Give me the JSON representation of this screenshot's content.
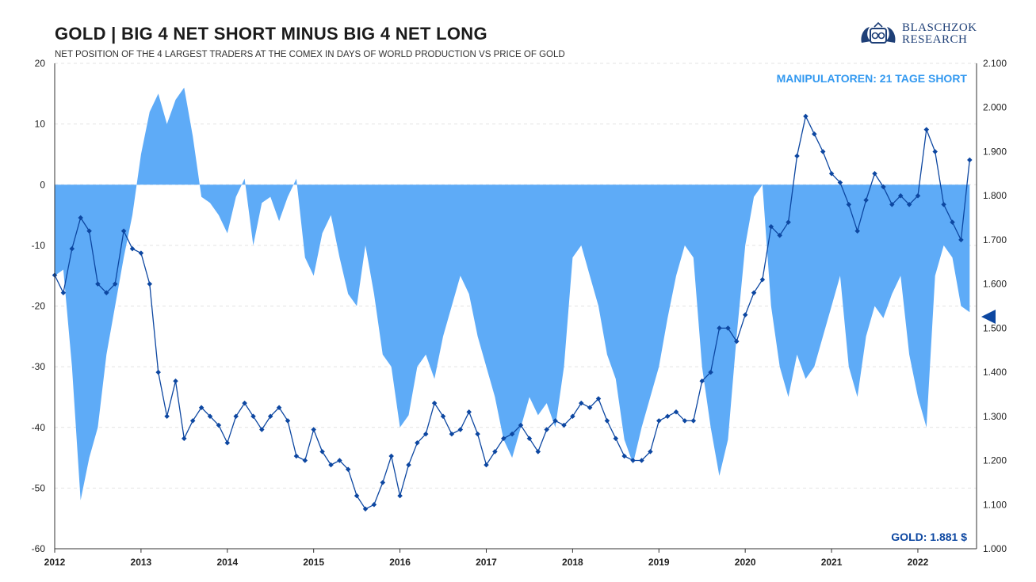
{
  "title": "GOLD | BIG 4 NET SHORT MINUS BIG 4 NET LONG",
  "subtitle": "NET POSITION OF THE 4 LARGEST TRADERS AT THE COMEX IN DAYS OF WORLD PRODUCTION VS PRICE OF GOLD",
  "logo": {
    "line1": "BLASCHZOK",
    "line2": "RESEARCH"
  },
  "annotations": {
    "position_label": "MANIPULATOREN: 21 TAGE SHORT",
    "price_label": "GOLD: 1.881 $"
  },
  "colors": {
    "net_position_fill": "#5eabf7",
    "gold_line": "#0d47a1",
    "position_label": "#3399f0",
    "price_label": "#0d47a1",
    "marker": "#0d47a1"
  },
  "chart_data": {
    "type": "bar+line",
    "x_ticks": [
      "2012",
      "2013",
      "2014",
      "2015",
      "2016",
      "2017",
      "2018",
      "2019",
      "2020",
      "2021",
      "2022"
    ],
    "y_left": {
      "range": [
        -60,
        20
      ],
      "ticks": [
        "20",
        "10",
        "0",
        "-10",
        "-20",
        "-30",
        "-40",
        "-50",
        "-60"
      ]
    },
    "y_right": {
      "range": [
        1000,
        2100
      ],
      "ticks": [
        "2.100",
        "2.000",
        "1.900",
        "1.800",
        "1.700",
        "1.600",
        "1.500",
        "1.400",
        "1.300",
        "1.200",
        "1.100",
        "1.000"
      ]
    },
    "grid": "horizontal dashed",
    "series": [
      {
        "kind": "area",
        "axis": "left",
        "x": [
          2012.0,
          2012.1,
          2012.2,
          2012.3,
          2012.4,
          2012.5,
          2012.6,
          2012.7,
          2012.8,
          2012.9,
          2013.0,
          2013.1,
          2013.2,
          2013.3,
          2013.4,
          2013.5,
          2013.6,
          2013.7,
          2013.8,
          2013.9,
          2014.0,
          2014.1,
          2014.2,
          2014.3,
          2014.4,
          2014.5,
          2014.6,
          2014.7,
          2014.8,
          2014.9,
          2015.0,
          2015.1,
          2015.2,
          2015.3,
          2015.4,
          2015.5,
          2015.6,
          2015.7,
          2015.8,
          2015.9,
          2016.0,
          2016.1,
          2016.2,
          2016.3,
          2016.4,
          2016.5,
          2016.6,
          2016.7,
          2016.8,
          2016.9,
          2017.0,
          2017.1,
          2017.2,
          2017.3,
          2017.4,
          2017.5,
          2017.6,
          2017.7,
          2017.8,
          2017.9,
          2018.0,
          2018.1,
          2018.2,
          2018.3,
          2018.4,
          2018.5,
          2018.6,
          2018.7,
          2018.8,
          2018.9,
          2019.0,
          2019.1,
          2019.2,
          2019.3,
          2019.4,
          2019.5,
          2019.6,
          2019.7,
          2019.8,
          2019.9,
          2020.0,
          2020.1,
          2020.2,
          2020.3,
          2020.4,
          2020.5,
          2020.6,
          2020.7,
          2020.8,
          2020.9,
          2021.0,
          2021.1,
          2021.2,
          2021.3,
          2021.4,
          2021.5,
          2021.6,
          2021.7,
          2021.8,
          2021.9,
          2022.0,
          2022.1,
          2022.2,
          2022.3,
          2022.4,
          2022.5,
          2022.6
        ],
        "values": [
          -15,
          -14,
          -30,
          -52,
          -45,
          -40,
          -28,
          -20,
          -12,
          -5,
          5,
          12,
          15,
          10,
          14,
          16,
          8,
          -2,
          -3,
          -5,
          -8,
          -2,
          1,
          -10,
          -3,
          -2,
          -6,
          -2,
          1,
          -12,
          -15,
          -8,
          -5,
          -12,
          -18,
          -20,
          -10,
          -18,
          -28,
          -30,
          -40,
          -38,
          -30,
          -28,
          -32,
          -25,
          -20,
          -15,
          -18,
          -25,
          -30,
          -35,
          -42,
          -45,
          -40,
          -35,
          -38,
          -36,
          -40,
          -30,
          -12,
          -10,
          -15,
          -20,
          -28,
          -32,
          -42,
          -46,
          -40,
          -35,
          -30,
          -22,
          -15,
          -10,
          -12,
          -30,
          -40,
          -48,
          -42,
          -25,
          -10,
          -2,
          0,
          -20,
          -30,
          -35,
          -28,
          -32,
          -30,
          -25,
          -20,
          -15,
          -30,
          -35,
          -25,
          -20,
          -22,
          -18,
          -15,
          -28,
          -35,
          -40,
          -15,
          -10,
          -12,
          -20,
          -21
        ]
      },
      {
        "kind": "line",
        "axis": "right",
        "x": [
          2012.0,
          2012.1,
          2012.2,
          2012.3,
          2012.4,
          2012.5,
          2012.6,
          2012.7,
          2012.8,
          2012.9,
          2013.0,
          2013.1,
          2013.2,
          2013.3,
          2013.4,
          2013.5,
          2013.6,
          2013.7,
          2013.8,
          2013.9,
          2014.0,
          2014.1,
          2014.2,
          2014.3,
          2014.4,
          2014.5,
          2014.6,
          2014.7,
          2014.8,
          2014.9,
          2015.0,
          2015.1,
          2015.2,
          2015.3,
          2015.4,
          2015.5,
          2015.6,
          2015.7,
          2015.8,
          2015.9,
          2016.0,
          2016.1,
          2016.2,
          2016.3,
          2016.4,
          2016.5,
          2016.6,
          2016.7,
          2016.8,
          2016.9,
          2017.0,
          2017.1,
          2017.2,
          2017.3,
          2017.4,
          2017.5,
          2017.6,
          2017.7,
          2017.8,
          2017.9,
          2018.0,
          2018.1,
          2018.2,
          2018.3,
          2018.4,
          2018.5,
          2018.6,
          2018.7,
          2018.8,
          2018.9,
          2019.0,
          2019.1,
          2019.2,
          2019.3,
          2019.4,
          2019.5,
          2019.6,
          2019.7,
          2019.8,
          2019.9,
          2020.0,
          2020.1,
          2020.2,
          2020.3,
          2020.4,
          2020.5,
          2020.6,
          2020.7,
          2020.8,
          2020.9,
          2021.0,
          2021.1,
          2021.2,
          2021.3,
          2021.4,
          2021.5,
          2021.6,
          2021.7,
          2021.8,
          2021.9,
          2022.0,
          2022.1,
          2022.2,
          2022.3,
          2022.4,
          2022.5,
          2022.6
        ],
        "values": [
          1620,
          1580,
          1680,
          1750,
          1720,
          1600,
          1580,
          1600,
          1720,
          1680,
          1670,
          1600,
          1400,
          1300,
          1380,
          1250,
          1290,
          1320,
          1300,
          1280,
          1240,
          1300,
          1330,
          1300,
          1270,
          1300,
          1320,
          1290,
          1210,
          1200,
          1270,
          1220,
          1190,
          1200,
          1180,
          1120,
          1090,
          1100,
          1150,
          1210,
          1120,
          1190,
          1240,
          1260,
          1330,
          1300,
          1260,
          1270,
          1310,
          1260,
          1190,
          1220,
          1250,
          1260,
          1280,
          1250,
          1220,
          1270,
          1290,
          1280,
          1300,
          1330,
          1320,
          1340,
          1290,
          1250,
          1210,
          1200,
          1200,
          1220,
          1290,
          1300,
          1310,
          1290,
          1290,
          1380,
          1400,
          1500,
          1500,
          1470,
          1530,
          1580,
          1610,
          1730,
          1710,
          1740,
          1890,
          1980,
          1940,
          1900,
          1850,
          1830,
          1780,
          1720,
          1790,
          1850,
          1820,
          1780,
          1800,
          1780,
          1800,
          1950,
          1900,
          1780,
          1740,
          1700,
          1881
        ]
      }
    ]
  }
}
